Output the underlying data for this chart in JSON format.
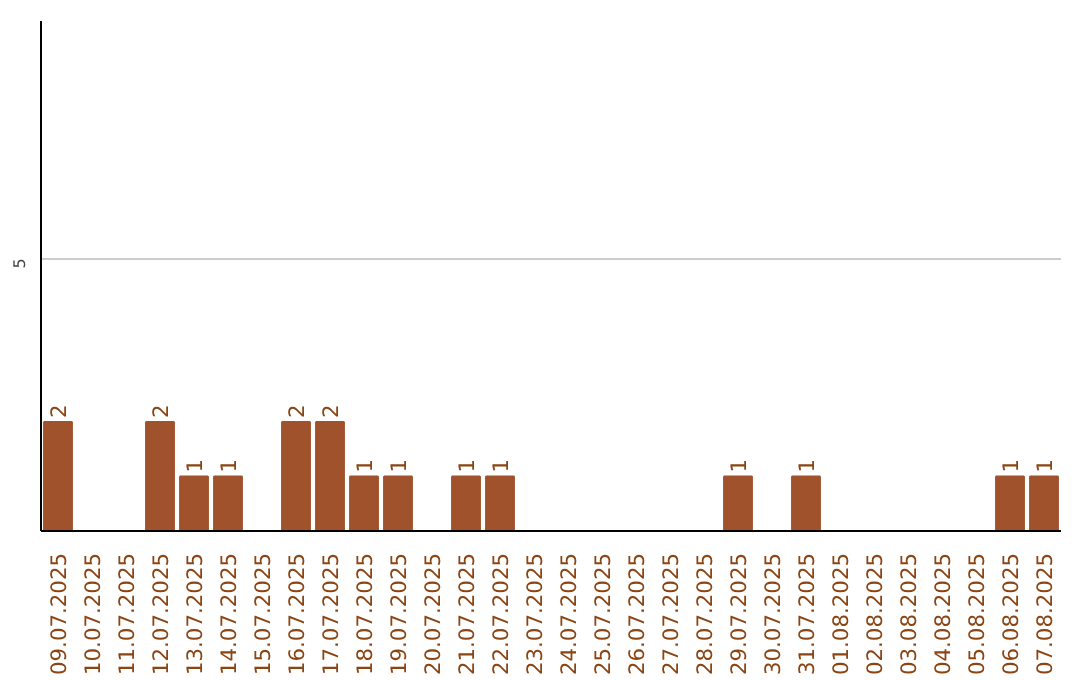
{
  "chart_data": {
    "type": "bar",
    "categories": [
      "09.07.2025",
      "10.07.2025",
      "11.07.2025",
      "12.07.2025",
      "13.07.2025",
      "14.07.2025",
      "15.07.2025",
      "16.07.2025",
      "17.07.2025",
      "18.07.2025",
      "19.07.2025",
      "20.07.2025",
      "21.07.2025",
      "22.07.2025",
      "23.07.2025",
      "24.07.2025",
      "25.07.2025",
      "26.07.2025",
      "27.07.2025",
      "28.07.2025",
      "29.07.2025",
      "30.07.2025",
      "31.07.2025",
      "01.08.2025",
      "02.08.2025",
      "03.08.2025",
      "04.08.2025",
      "05.08.2025",
      "06.08.2025",
      "07.08.2025"
    ],
    "values": [
      2,
      0,
      0,
      2,
      1,
      1,
      0,
      2,
      2,
      1,
      1,
      0,
      1,
      1,
      0,
      0,
      0,
      0,
      0,
      0,
      1,
      0,
      1,
      0,
      0,
      0,
      0,
      0,
      1,
      1
    ],
    "value_labels": [
      "2",
      null,
      null,
      "2",
      "1",
      "1",
      null,
      "2",
      "2",
      "1",
      "1",
      null,
      "1",
      "1",
      null,
      null,
      null,
      null,
      null,
      null,
      "1",
      null,
      "1",
      null,
      null,
      null,
      null,
      null,
      "1",
      "1"
    ],
    "color": "#a0522d",
    "ylim": [
      0,
      9.35
    ],
    "yticks": [
      5
    ],
    "grid": "y"
  }
}
